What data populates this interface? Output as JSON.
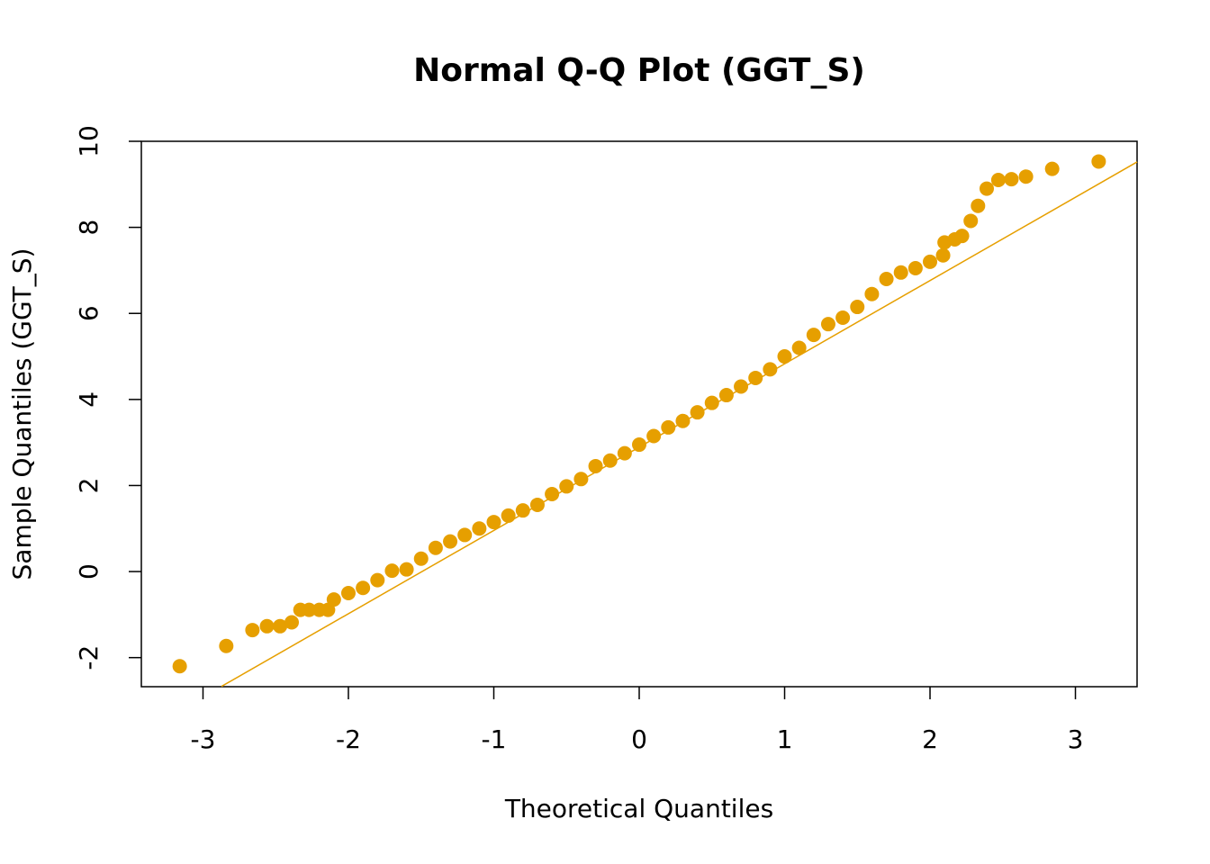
{
  "chart_data": {
    "type": "scatter",
    "title": "Normal Q-Q Plot (GGT_S)",
    "x_label": "Theoretical Quantiles",
    "y_label": "Sample Quantiles (GGT_S)",
    "color": "#E69F00",
    "x": [
      -3.16,
      -2.84,
      -2.66,
      -2.56,
      -2.47,
      -2.39,
      -2.33,
      -2.27,
      -2.2,
      -2.14,
      -2.1,
      -2.0,
      -1.9,
      -1.8,
      -1.7,
      -1.6,
      -1.5,
      -1.4,
      -1.3,
      -1.2,
      -1.1,
      -1.0,
      -0.9,
      -0.8,
      -0.7,
      -0.6,
      -0.5,
      -0.4,
      -0.3,
      -0.2,
      -0.1,
      0.0,
      0.1,
      0.2,
      0.3,
      0.4,
      0.5,
      0.6,
      0.7,
      0.8,
      0.9,
      1.0,
      1.1,
      1.2,
      1.3,
      1.4,
      1.5,
      1.6,
      1.7,
      1.8,
      1.9,
      2.0,
      2.09,
      2.1,
      2.17,
      2.22,
      2.28,
      2.33,
      2.39,
      2.47,
      2.56,
      2.66,
      2.84,
      3.16
    ],
    "values": [
      -2.2,
      -1.73,
      -1.36,
      -1.27,
      -1.27,
      -1.18,
      -0.89,
      -0.89,
      -0.89,
      -0.89,
      -0.65,
      -0.5,
      -0.38,
      -0.2,
      0.02,
      0.05,
      0.3,
      0.55,
      0.7,
      0.85,
      1.0,
      1.15,
      1.3,
      1.42,
      1.55,
      1.8,
      1.98,
      2.15,
      2.45,
      2.58,
      2.75,
      2.95,
      3.15,
      3.35,
      3.5,
      3.7,
      3.92,
      4.1,
      4.3,
      4.5,
      4.7,
      5.0,
      5.2,
      5.5,
      5.75,
      5.9,
      6.15,
      6.45,
      6.8,
      6.95,
      7.05,
      7.2,
      7.35,
      7.65,
      7.72,
      7.8,
      8.15,
      8.5,
      8.9,
      9.1,
      9.12,
      9.18,
      9.36,
      9.53
    ],
    "reference_line": {
      "x": [
        -2.873,
        3.424
      ],
      "values": [
        -2.67,
        9.52
      ],
      "color": "#E69F00"
    },
    "xlim": [
      -3.424,
      3.424
    ],
    "ylim": [
      -2.676,
      10
    ],
    "xticks": [
      -3,
      -2,
      -1,
      0,
      1,
      2,
      3
    ],
    "yticks": [
      -2,
      0,
      2,
      4,
      6,
      8,
      10
    ]
  }
}
